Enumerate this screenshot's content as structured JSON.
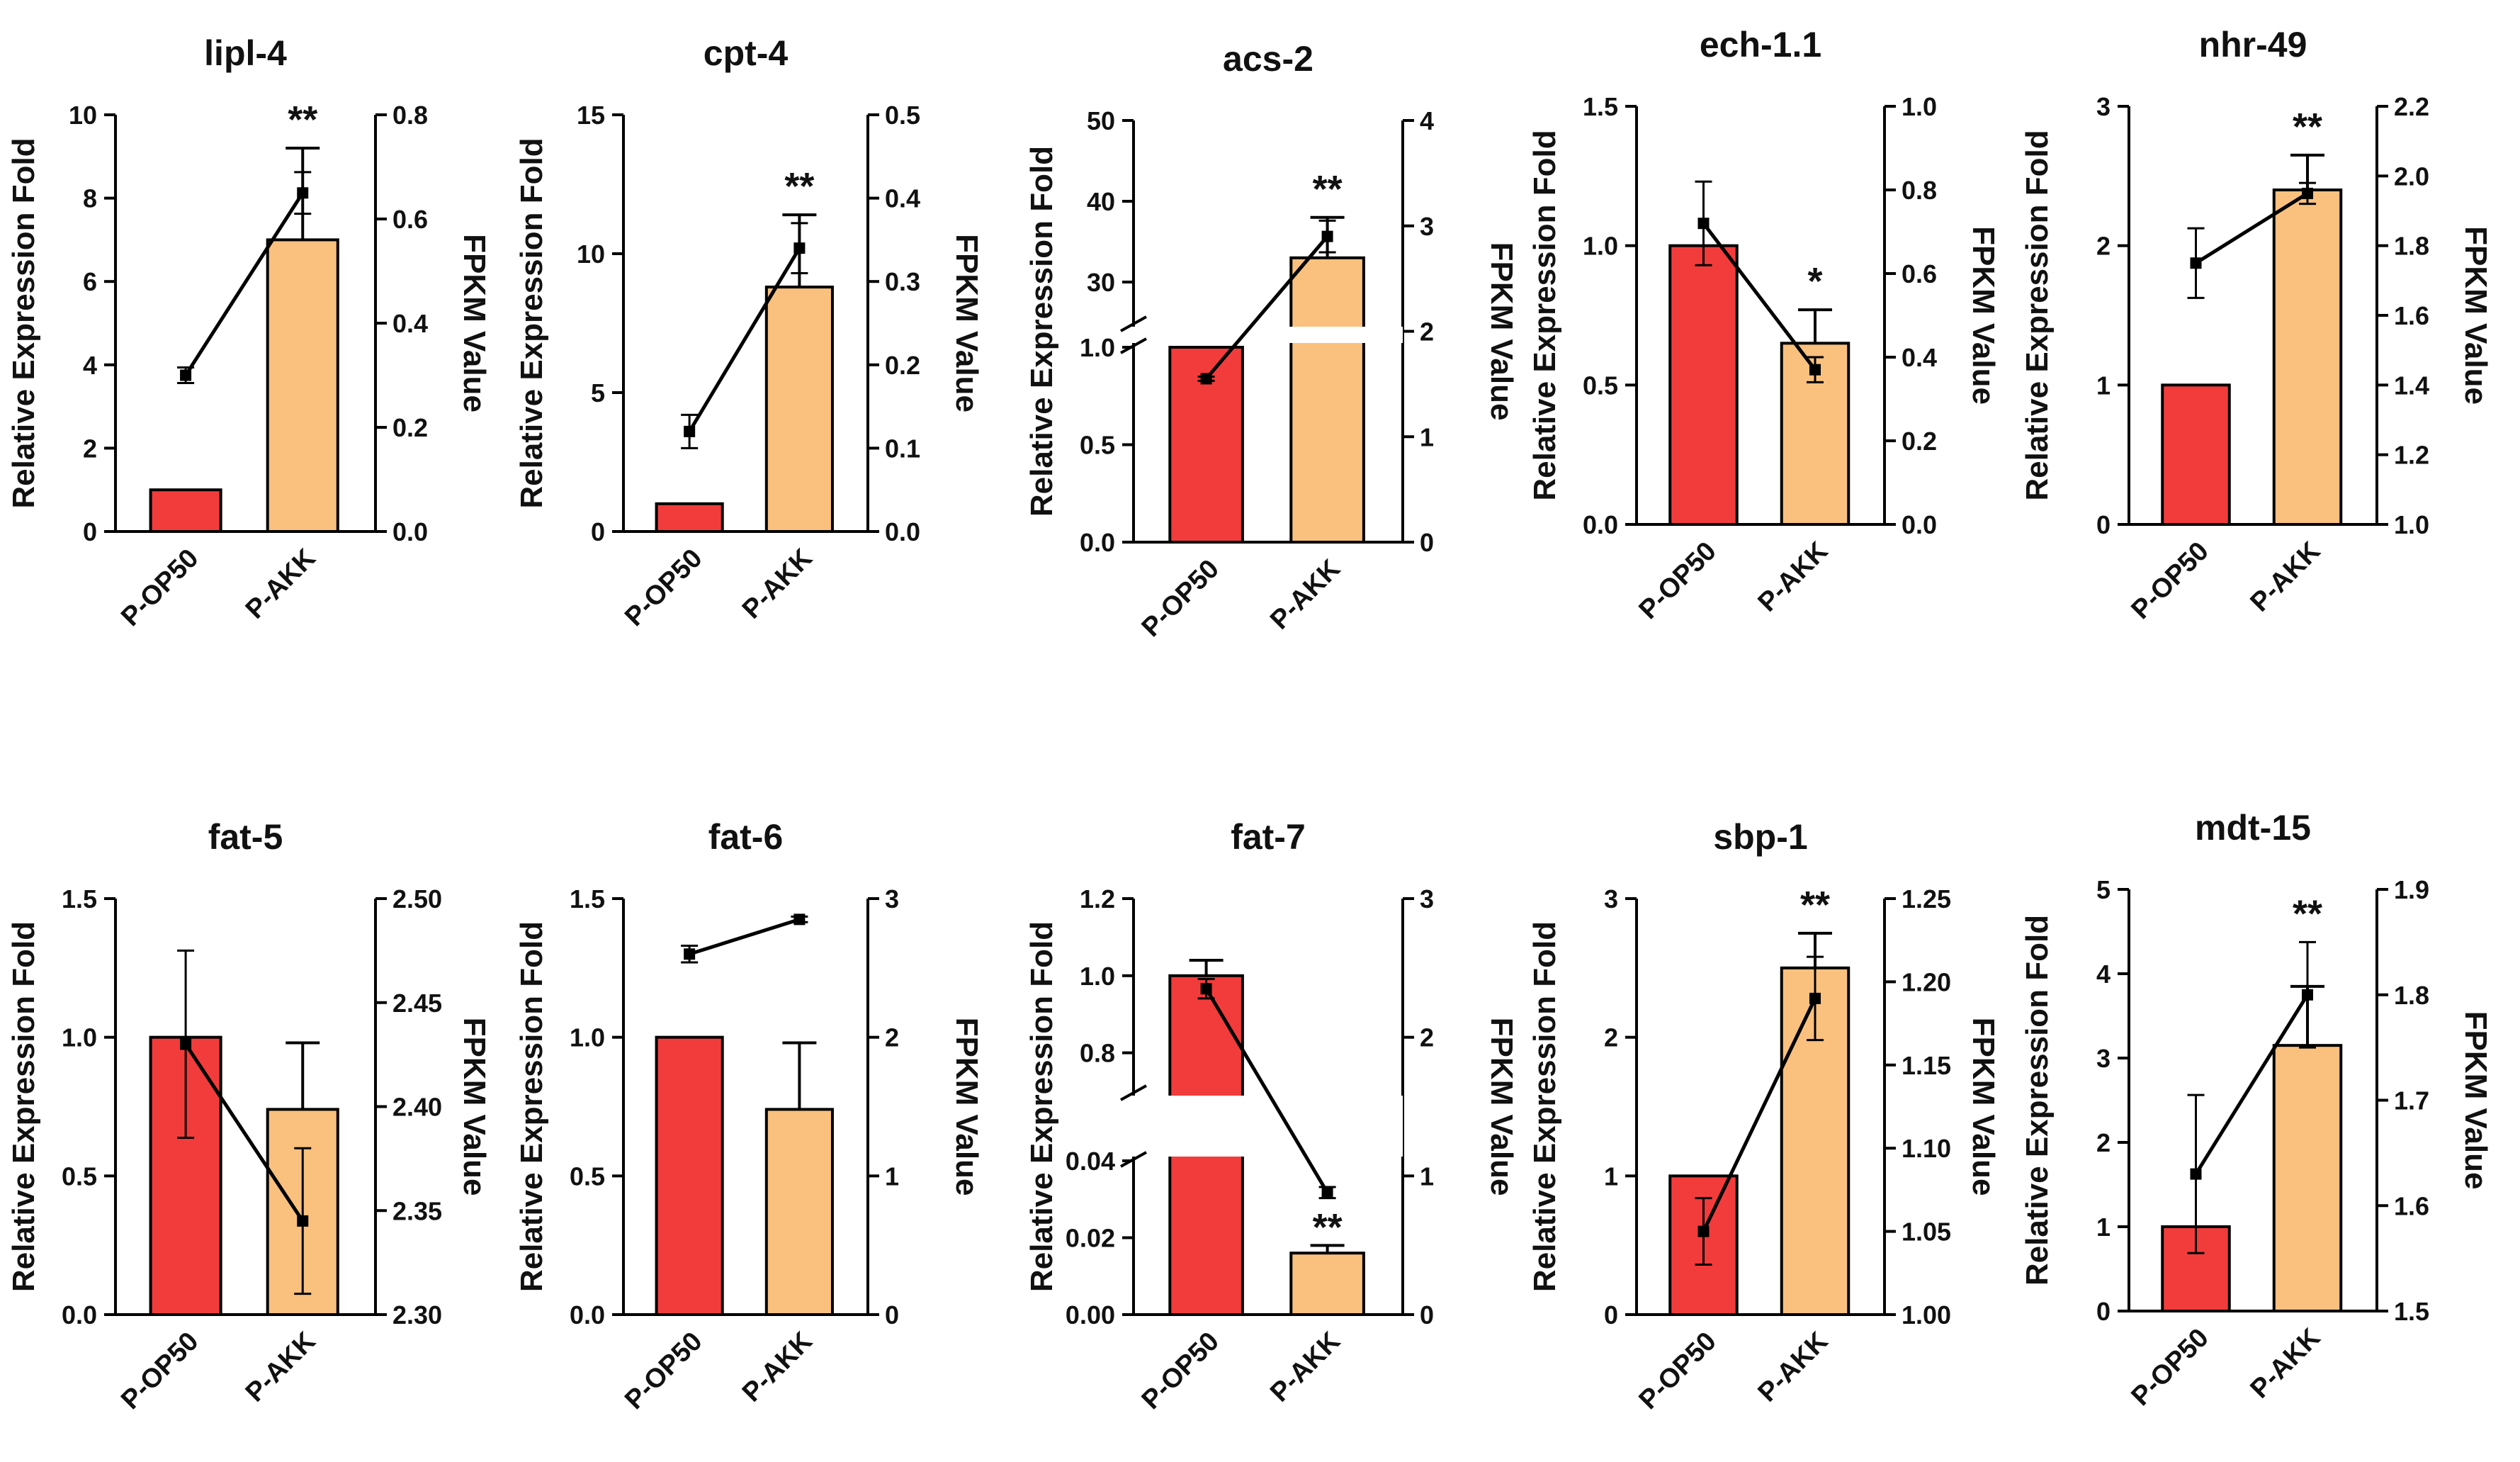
{
  "chart_data": [
    {
      "type": "bar",
      "title": "lipl-4",
      "categories": [
        "P-OP50",
        "P-AKK"
      ],
      "ylabel": "Relative Expression Fold",
      "y2label": "FPKM Value",
      "ylim": [
        0,
        10
      ],
      "yticks": [
        "0",
        "2",
        "4",
        "6",
        "8",
        "10"
      ],
      "y2lim": [
        0,
        0.8
      ],
      "y2ticks": [
        "0.0",
        "0.2",
        "0.4",
        "0.6",
        "0.8"
      ],
      "bars": [
        1.0,
        7.0
      ],
      "bar_err": [
        0,
        2.2
      ],
      "fpkm": [
        0.3,
        0.65
      ],
      "fpkm_err": [
        0.015,
        0.04
      ],
      "sig": "**"
    },
    {
      "type": "bar",
      "title": "cpt-4",
      "categories": [
        "P-OP50",
        "P-AKK"
      ],
      "ylabel": "Relative Expression Fold",
      "y2label": "FPKM Value",
      "ylim": [
        0,
        15
      ],
      "yticks": [
        "0",
        "5",
        "10",
        "15"
      ],
      "y2lim": [
        0,
        0.5
      ],
      "y2ticks": [
        "0.0",
        "0.1",
        "0.2",
        "0.3",
        "0.4",
        "0.5"
      ],
      "bars": [
        1.0,
        8.8
      ],
      "bar_err": [
        0,
        2.6
      ],
      "fpkm": [
        0.12,
        0.34
      ],
      "fpkm_err": [
        0.02,
        0.03
      ],
      "sig": "**"
    },
    {
      "type": "bar",
      "title": "acs-2",
      "categories": [
        "P-OP50",
        "P-AKK"
      ],
      "ylabel": "Relative Expression Fold",
      "y2label": "FPKM Value",
      "yticks": [
        "0.0",
        "0.5",
        "1.0",
        "30",
        "40",
        "50"
      ],
      "y2lim": [
        0,
        4
      ],
      "y2ticks": [
        "0",
        "1",
        "2",
        "3",
        "4"
      ],
      "bars": [
        1.0,
        33
      ],
      "bar_err": [
        0,
        5
      ],
      "fpkm": [
        1.55,
        2.9
      ],
      "fpkm_err": [
        0.02,
        0.15
      ],
      "sig": "**",
      "broken_axis": true
    },
    {
      "type": "bar",
      "title": "ech-1.1",
      "categories": [
        "P-OP50",
        "P-AKK"
      ],
      "ylabel": "Relative Expression Fold",
      "y2label": "FPKM Value",
      "ylim": [
        0,
        1.5
      ],
      "yticks": [
        "0.0",
        "0.5",
        "1.0",
        "1.5"
      ],
      "y2lim": [
        0,
        1.0
      ],
      "y2ticks": [
        "0.0",
        "0.2",
        "0.4",
        "0.6",
        "0.8",
        "1.0"
      ],
      "bars": [
        1.0,
        0.65
      ],
      "bar_err": [
        0,
        0.12
      ],
      "fpkm": [
        0.72,
        0.37
      ],
      "fpkm_err": [
        0.1,
        0.03
      ],
      "sig": "*"
    },
    {
      "type": "bar",
      "title": "nhr-49",
      "categories": [
        "P-OP50",
        "P-AKK"
      ],
      "ylabel": "Relative Expression Fold",
      "y2label": "FPKM Value",
      "ylim": [
        0,
        3
      ],
      "yticks": [
        "0",
        "1",
        "2",
        "3"
      ],
      "y2lim": [
        1.0,
        2.2
      ],
      "y2ticks": [
        "1.0",
        "1.2",
        "1.4",
        "1.6",
        "1.8",
        "2.0",
        "2.2"
      ],
      "bars": [
        1.0,
        2.4
      ],
      "bar_err": [
        0,
        0.25
      ],
      "fpkm": [
        1.75,
        1.95
      ],
      "fpkm_err": [
        0.1,
        0.03
      ],
      "sig": "**"
    },
    {
      "type": "bar",
      "title": "fat-5",
      "categories": [
        "P-OP50",
        "P-AKK"
      ],
      "ylabel": "Relative Expression Fold",
      "y2label": "FPKM Value",
      "ylim": [
        0,
        1.5
      ],
      "yticks": [
        "0.0",
        "0.5",
        "1.0",
        "1.5"
      ],
      "y2lim": [
        2.3,
        2.5
      ],
      "y2ticks": [
        "2.30",
        "2.35",
        "2.40",
        "2.45",
        "2.50"
      ],
      "bars": [
        1.0,
        0.74
      ],
      "bar_err": [
        0,
        0.24
      ],
      "fpkm": [
        2.43,
        2.345
      ],
      "fpkm_err": [
        0.045,
        0.035
      ],
      "sig": ""
    },
    {
      "type": "bar",
      "title": "fat-6",
      "categories": [
        "P-OP50",
        "P-AKK"
      ],
      "ylabel": "Relative Expression Fold",
      "y2label": "FPKM Value",
      "ylim": [
        0,
        1.5
      ],
      "yticks": [
        "0.0",
        "0.5",
        "1.0",
        "1.5"
      ],
      "y2lim": [
        0,
        3
      ],
      "y2ticks": [
        "0",
        "1",
        "2",
        "3"
      ],
      "bars": [
        1.0,
        0.74
      ],
      "bar_err": [
        0,
        0.24
      ],
      "fpkm": [
        2.6,
        2.85
      ],
      "fpkm_err": [
        0.06,
        0.02
      ],
      "sig": ""
    },
    {
      "type": "bar",
      "title": "fat-7",
      "categories": [
        "P-OP50",
        "P-AKK"
      ],
      "ylabel": "Relative Expression Fold",
      "y2label": "FPKM Value",
      "yticks": [
        "0.00",
        "0.02",
        "0.04",
        "0.8",
        "1.0",
        "1.2"
      ],
      "y2lim": [
        0,
        3
      ],
      "y2ticks": [
        "0",
        "1",
        "2",
        "3"
      ],
      "bars": [
        1.0,
        0.016
      ],
      "bar_err": [
        0.04,
        0.002
      ],
      "fpkm": [
        2.35,
        0.88
      ],
      "fpkm_err": [
        0.07,
        0.04
      ],
      "sig": "**",
      "broken_axis": true
    },
    {
      "type": "bar",
      "title": "sbp-1",
      "categories": [
        "P-OP50",
        "P-AKK"
      ],
      "ylabel": "Relative Expression Fold",
      "y2label": "FPKM Value",
      "ylim": [
        0,
        3
      ],
      "yticks": [
        "0",
        "1",
        "2",
        "3"
      ],
      "y2lim": [
        1.0,
        1.25
      ],
      "y2ticks": [
        "1.00",
        "1.05",
        "1.10",
        "1.15",
        "1.20",
        "1.25"
      ],
      "bars": [
        1.0,
        2.5
      ],
      "bar_err": [
        0,
        0.25
      ],
      "fpkm": [
        1.05,
        1.19
      ],
      "fpkm_err": [
        0.02,
        0.025
      ],
      "sig": "**"
    },
    {
      "type": "bar",
      "title": "mdt-15",
      "categories": [
        "P-OP50",
        "P-AKK"
      ],
      "ylabel": "Relative Expression Fold",
      "y2label": "FPKM Value",
      "ylim": [
        0,
        5
      ],
      "yticks": [
        "0",
        "1",
        "2",
        "3",
        "4",
        "5"
      ],
      "y2lim": [
        1.5,
        1.9
      ],
      "y2ticks": [
        "1.5",
        "1.6",
        "1.7",
        "1.8",
        "1.9"
      ],
      "bars": [
        1.0,
        3.15
      ],
      "bar_err": [
        0,
        0.7
      ],
      "fpkm": [
        1.63,
        1.8
      ],
      "fpkm_err": [
        0.075,
        0.05
      ],
      "sig": "**"
    }
  ],
  "colors": {
    "bar_op50": "#f23c3c",
    "bar_akk": "#f9c07e",
    "line": "#000000"
  }
}
